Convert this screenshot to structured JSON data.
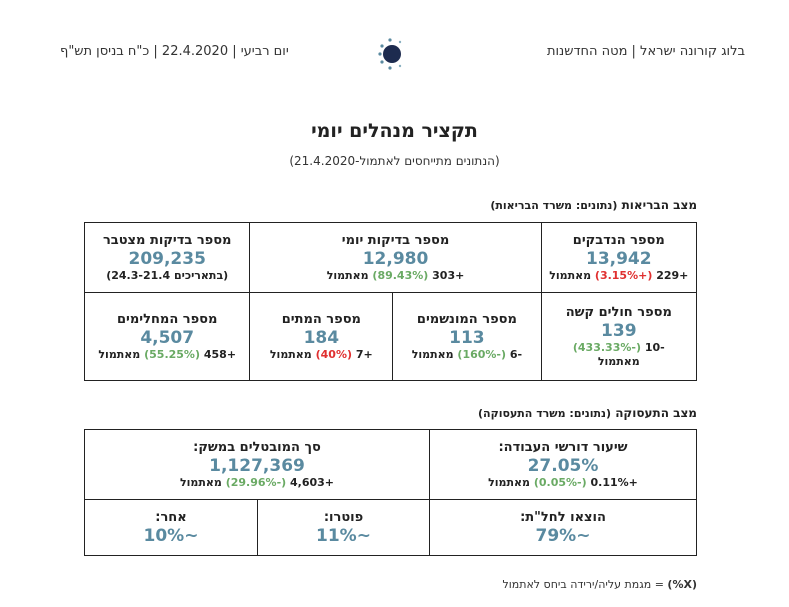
{
  "header": {
    "right_text": "בלוג קורונה ישראל | מטה החדשנות",
    "left_text": "יום רביעי | 22.4.2020 | כ\"ח בניסן תש\"ף"
  },
  "title": "תקציר מנהלים יומי",
  "subtitle": "(הנתונים מתייחסים לאתמול-21.4.2020)",
  "health": {
    "section_title": "מצב הבריאות",
    "section_source": "(נתונים: משרד הבריאות)",
    "infected": {
      "label": "מספר הנדבקים",
      "value": "13,942",
      "delta": "+229",
      "pct": "(+3.15%)",
      "suffix": "מאתמול"
    },
    "daily_tests": {
      "label": "מספר בדיקות יומי",
      "value": "12,980",
      "delta": "+303",
      "pct": "(89.43%)",
      "suffix": "מאתמול"
    },
    "cumulative_tests": {
      "label": "מספר בדיקות מצטבר",
      "value": "209,235",
      "note": "(בתאריכים 24.3-21.4)"
    },
    "serious": {
      "label": "מספר חולים קשה",
      "value": "139",
      "delta": "-10",
      "pct": "(-433.33%)",
      "suffix": "מאתמול"
    },
    "ventilated": {
      "label": "מספר המונשמים",
      "value": "113",
      "delta": "-6",
      "pct": "(-160%)",
      "suffix": "מאתמול"
    },
    "deaths": {
      "label": "מספר המתים",
      "value": "184",
      "delta": "+7",
      "pct": "(40%)",
      "suffix": "מאתמול"
    },
    "recovered": {
      "label": "מספר המחלימים",
      "value": "4,507",
      "delta": "+458",
      "pct": "(55.25%)",
      "suffix": "מאתמול"
    }
  },
  "employment": {
    "section_title": "מצב התעסוקה",
    "section_source": "(נתונים: משרד התעסוקה)",
    "unemployment_rate": {
      "label": "שיעור דורשי העבודה:",
      "value": "27.05%",
      "delta": "+0.11%",
      "pct": "(-0.05%)",
      "suffix": "מאתמול"
    },
    "total_unemployed": {
      "label": "סך המובטלים במשק:",
      "value": "1,127,369",
      "delta": "+4,603",
      "pct": "(-29.96%)",
      "suffix": "מאתמול"
    },
    "unpaid_leave": {
      "label": "הוצאו לחל\"ת:",
      "value": "~79%"
    },
    "fired": {
      "label": "פוטרו:",
      "value": "~11%"
    },
    "other": {
      "label": "אחר:",
      "value": "~10%"
    }
  },
  "footnote": {
    "marker": "(X%)",
    "text": "= מגמת עליה/ירידה ביחס לאתמול"
  },
  "colors": {
    "value": "#5a8aa0",
    "positive": "#6aaa64",
    "negative": "#e03030",
    "logo": "#1d2b4f"
  }
}
